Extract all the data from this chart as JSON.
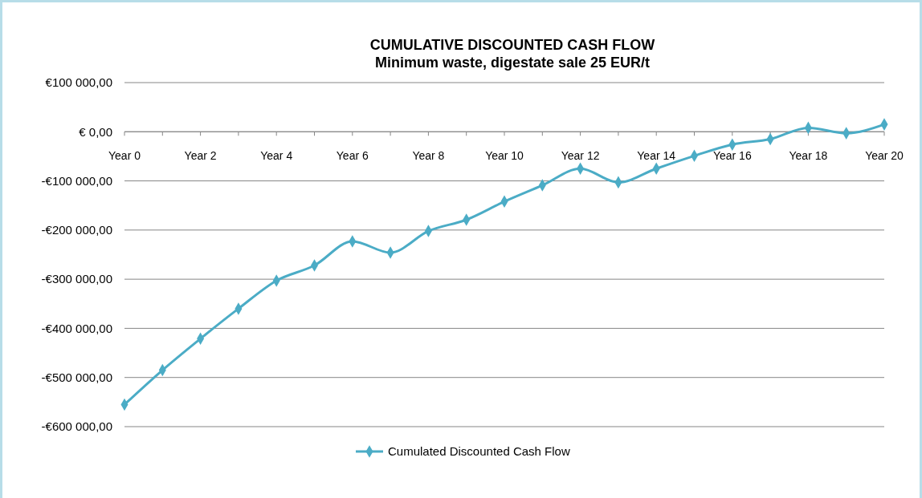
{
  "chart_data": {
    "type": "line",
    "title": "CUMULATIVE DISCOUNTED CASH FLOW",
    "subtitle": "Minimum waste, digestate sale 25 EUR/t",
    "categories": [
      "Year 0",
      null,
      "Year 2",
      null,
      "Year 4",
      null,
      "Year 6",
      null,
      "Year 8",
      null,
      "Year 10",
      null,
      "Year 12",
      null,
      "Year 14",
      null,
      "Year 16",
      null,
      "Year 18",
      null,
      "Year 20"
    ],
    "series": [
      {
        "name": "Cumulated Discounted Cash Flow",
        "color": "#4bacc6",
        "values": [
          -555000,
          -485000,
          -421000,
          -360000,
          -303000,
          -272000,
          -223000,
          -246000,
          -202000,
          -179000,
          -142000,
          -109000,
          -75000,
          -103000,
          -75000,
          -49000,
          -26000,
          -15000,
          8000,
          -3000,
          15000
        ]
      }
    ],
    "ylim": [
      -600000,
      100000
    ],
    "yticks": [
      {
        "value": 100000,
        "label": "€100 000,00"
      },
      {
        "value": 0,
        "label": "€ 0,00"
      },
      {
        "value": -100000,
        "label": "-€100 000,00"
      },
      {
        "value": -200000,
        "label": "-€200 000,00"
      },
      {
        "value": -300000,
        "label": "-€300 000,00"
      },
      {
        "value": -400000,
        "label": "-€400 000,00"
      },
      {
        "value": -500000,
        "label": "-€500 000,00"
      },
      {
        "value": -600000,
        "label": "-€600 000,00"
      }
    ],
    "grid": "y",
    "legend": "bottom",
    "marker": "diamond",
    "line_style": "solid"
  }
}
